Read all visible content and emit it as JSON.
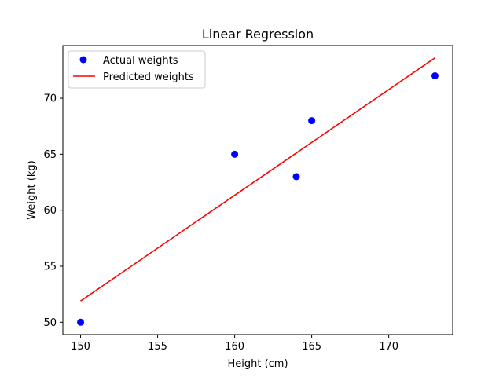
{
  "chart_data": {
    "type": "scatter",
    "title": "Linear Regression",
    "xlabel": "Height (cm)",
    "ylabel": "Weight (kg)",
    "xlim": [
      148.85,
      174.15
    ],
    "ylim": [
      48.9,
      74.7
    ],
    "xticks": [
      150,
      155,
      160,
      165,
      170
    ],
    "yticks": [
      50,
      55,
      60,
      65,
      70
    ],
    "grid": false,
    "legend_position": "top-left",
    "series": [
      {
        "name": "Actual weights",
        "kind": "scatter",
        "color": "#0000ff",
        "points": [
          {
            "x": 150,
            "y": 50
          },
          {
            "x": 160,
            "y": 65
          },
          {
            "x": 164,
            "y": 63
          },
          {
            "x": 165,
            "y": 68
          },
          {
            "x": 173,
            "y": 72
          }
        ]
      },
      {
        "name": "Predicted weights",
        "kind": "line",
        "color": "#ff0000",
        "points": [
          {
            "x": 150,
            "y": 51.9
          },
          {
            "x": 173,
            "y": 73.6
          }
        ]
      }
    ]
  }
}
